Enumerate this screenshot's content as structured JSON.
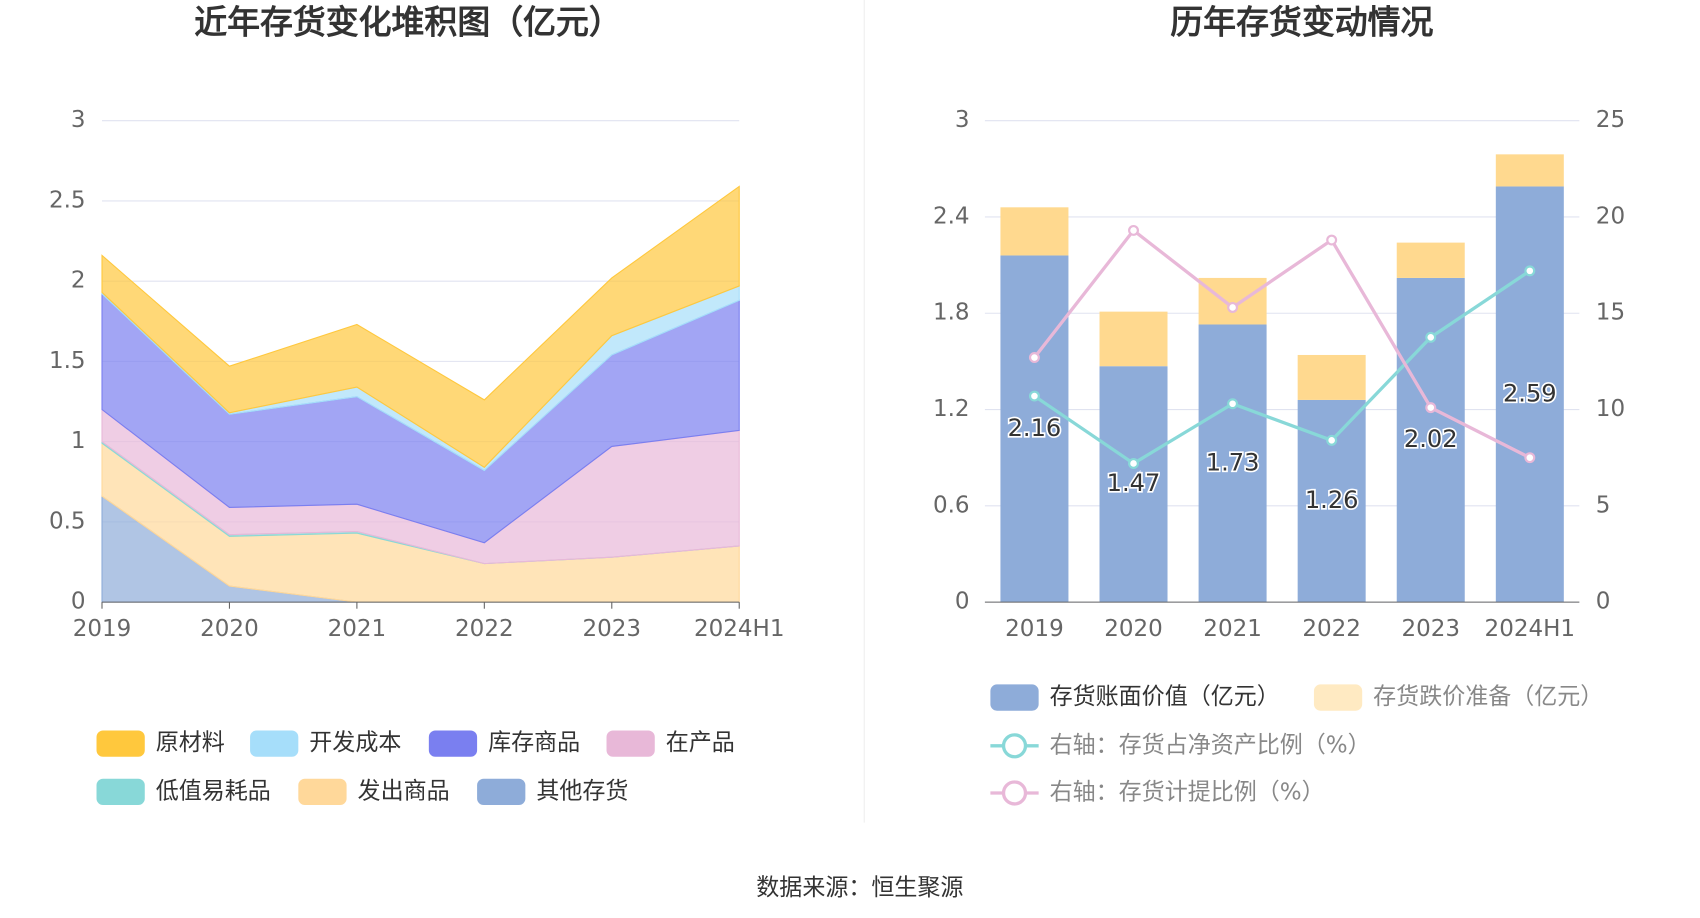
{
  "chart_data": [
    {
      "type": "area",
      "title": "近年存货变化堆积图（亿元）",
      "categories": [
        "2019",
        "2020",
        "2021",
        "2022",
        "2023",
        "2024H1"
      ],
      "ylim": [
        0,
        3
      ],
      "yticks": [
        0,
        0.5,
        1,
        1.5,
        2,
        2.5,
        3
      ],
      "grid": true,
      "stacked": true,
      "series": [
        {
          "name": "原材料",
          "color": "#ffc83d",
          "values": [
            0.23,
            0.29,
            0.39,
            0.42,
            0.36,
            0.62
          ]
        },
        {
          "name": "开发成本",
          "color": "#a6defa",
          "values": [
            0.01,
            0.01,
            0.06,
            0.02,
            0.12,
            0.09
          ]
        },
        {
          "name": "库存商品",
          "color": "#7a7ff0",
          "values": [
            0.72,
            0.58,
            0.67,
            0.45,
            0.57,
            0.81
          ]
        },
        {
          "name": "在产品",
          "color": "#e8b8d8",
          "values": [
            0.2,
            0.17,
            0.17,
            0.13,
            0.69,
            0.72
          ]
        },
        {
          "name": "低值易耗品",
          "color": "#88d8d8",
          "values": [
            0.01,
            0.01,
            0.01,
            0,
            0,
            0
          ]
        },
        {
          "name": "发出商品",
          "color": "#ffd89a",
          "values": [
            0.33,
            0.31,
            0.43,
            0.24,
            0.28,
            0.35
          ]
        },
        {
          "name": "其他存货",
          "color": "#8eacd9",
          "values": [
            0.66,
            0.1,
            0,
            0,
            0,
            0
          ]
        }
      ]
    },
    {
      "type": "bar_line",
      "title": "历年存货变动情况",
      "categories": [
        "2019",
        "2020",
        "2021",
        "2022",
        "2023",
        "2024H1"
      ],
      "ylim": [
        0,
        3
      ],
      "yticks": [
        0,
        0.6,
        1.2,
        1.8,
        2.4,
        3
      ],
      "y2lim": [
        0,
        25
      ],
      "y2ticks": [
        0,
        5,
        10,
        15,
        20,
        25
      ],
      "grid": true,
      "series": [
        {
          "name": "存货账面价值（亿元）",
          "color": "#8eacd9",
          "values": [
            2.16,
            1.47,
            1.73,
            1.26,
            2.02,
            2.59
          ]
        },
        {
          "name": "存货跌价准备（亿元）",
          "color": "#ffd98f",
          "values": [
            0.3,
            0.34,
            0.29,
            0.28,
            0.22,
            0.2
          ]
        },
        {
          "name": "右轴：存货占净资产比例（%）",
          "color": "#88d8d8",
          "axis": "y2",
          "values": [
            10.7,
            7.2,
            10.3,
            8.4,
            13.75,
            17.2
          ]
        },
        {
          "name": "右轴：存货计提比例（%）",
          "color": "#e8b8d8",
          "axis": "y2",
          "values": [
            12.7,
            19.3,
            15.3,
            18.8,
            10.1,
            7.5
          ]
        }
      ]
    }
  ],
  "source": "数据来源：恒生聚源"
}
